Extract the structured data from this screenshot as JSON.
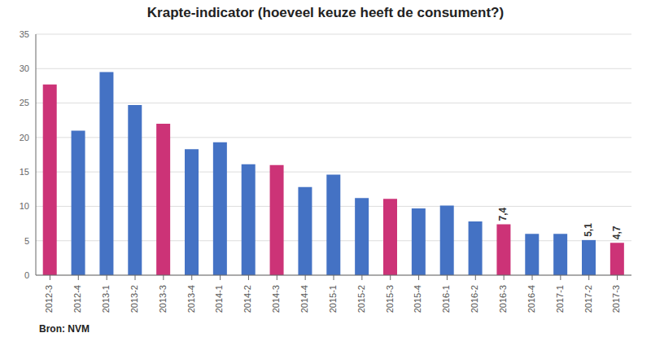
{
  "chart_data": {
    "type": "bar",
    "title": "Krapte-indicator (hoeveel keuze heeft de consument?)",
    "categories": [
      "2012-3",
      "2012-4",
      "2013-1",
      "2013-2",
      "2013-3",
      "2013-4",
      "2014-1",
      "2014-2",
      "2014-3",
      "2014-4",
      "2015-1",
      "2015-2",
      "2015-3",
      "2015-4",
      "2016-1",
      "2016-2",
      "2016-3",
      "2016-4",
      "2017-1",
      "2017-2",
      "2017-3"
    ],
    "values": [
      27.7,
      21.0,
      29.5,
      24.7,
      22.0,
      18.3,
      19.3,
      16.1,
      16.0,
      12.8,
      14.6,
      11.2,
      11.1,
      9.7,
      10.1,
      7.8,
      7.4,
      6.0,
      6.0,
      5.1,
      4.7
    ],
    "value_labels": [
      null,
      null,
      null,
      null,
      null,
      null,
      null,
      null,
      null,
      null,
      null,
      null,
      null,
      null,
      null,
      null,
      "7,4",
      null,
      null,
      "5,1",
      "4,7"
    ],
    "colors": [
      "#cc3377",
      "#4472c4",
      "#4472c4",
      "#4472c4",
      "#cc3377",
      "#4472c4",
      "#4472c4",
      "#4472c4",
      "#cc3377",
      "#4472c4",
      "#4472c4",
      "#4472c4",
      "#cc3377",
      "#4472c4",
      "#4472c4",
      "#4472c4",
      "#cc3377",
      "#4472c4",
      "#4472c4",
      "#4472c4",
      "#cc3377"
    ],
    "annotations": [
      "Bron: NVM"
    ],
    "ylim": [
      0,
      35
    ],
    "yticks": [
      0,
      5,
      10,
      15,
      20,
      25,
      30,
      35
    ],
    "grid": true
  }
}
